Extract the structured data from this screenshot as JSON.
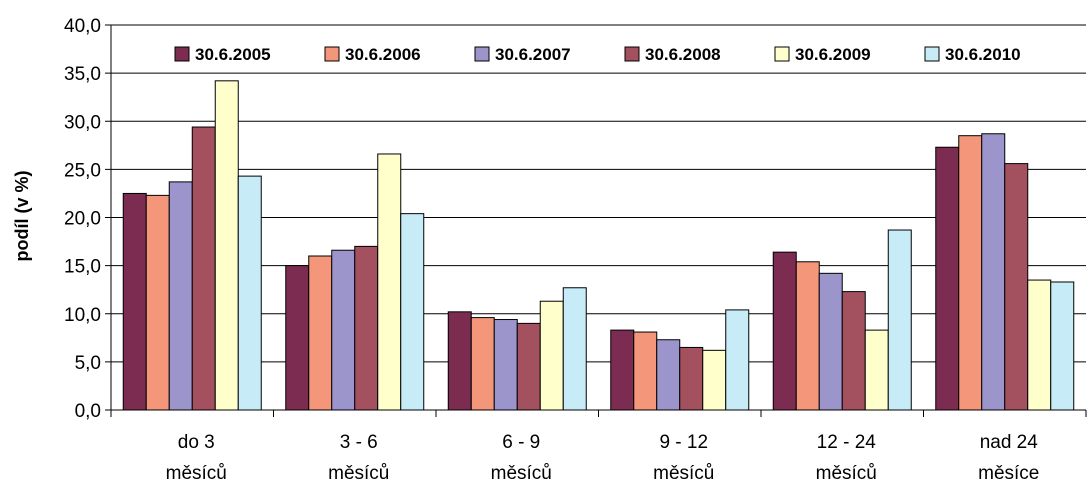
{
  "chart_data": {
    "type": "bar",
    "ylabel": "podíl (v %)",
    "xlabel": "",
    "ylim": [
      0,
      40
    ],
    "ytick_step": 5,
    "ytick_labels": [
      "0,0",
      "5,0",
      "10,0",
      "15,0",
      "20,0",
      "25,0",
      "30,0",
      "35,0",
      "40,0"
    ],
    "grid": true,
    "legend_position": "top",
    "categories": [
      [
        "do 3",
        "měsíců"
      ],
      [
        "3 - 6",
        "měsíců"
      ],
      [
        "6 - 9",
        "měsíců"
      ],
      [
        "9 - 12",
        "měsíců"
      ],
      [
        "12 - 24",
        "měsíců"
      ],
      [
        "nad 24",
        "měsíce"
      ]
    ],
    "series": [
      {
        "name": "30.6.2005",
        "color": "#7b2c50",
        "values": [
          22.5,
          15.0,
          10.2,
          8.3,
          16.4,
          27.3
        ]
      },
      {
        "name": "30.6.2006",
        "color": "#f4967a",
        "values": [
          22.3,
          16.0,
          9.6,
          8.1,
          15.4,
          28.5
        ]
      },
      {
        "name": "30.6.2007",
        "color": "#9b95cc",
        "values": [
          23.7,
          16.6,
          9.4,
          7.3,
          14.2,
          28.7
        ]
      },
      {
        "name": "30.6.2008",
        "color": "#a3505f",
        "values": [
          29.4,
          17.0,
          9.0,
          6.5,
          12.3,
          25.6
        ]
      },
      {
        "name": "30.6.2009",
        "color": "#ffffcc",
        "values": [
          34.2,
          26.6,
          11.3,
          6.2,
          8.3,
          13.5
        ]
      },
      {
        "name": "30.6.2010",
        "color": "#c8ebf8",
        "values": [
          24.3,
          20.4,
          12.7,
          10.4,
          18.7,
          13.3
        ]
      }
    ]
  }
}
